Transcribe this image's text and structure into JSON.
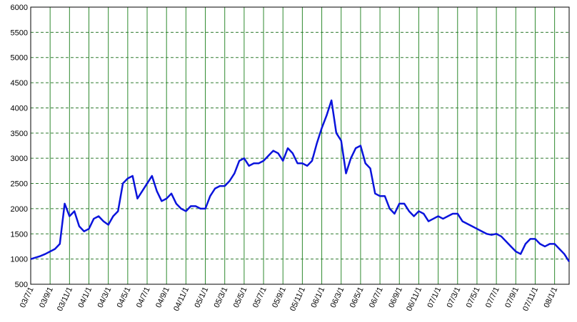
{
  "chart_data": {
    "type": "line",
    "categories": [
      "03/7/1",
      null,
      null,
      null,
      "03/9/1",
      null,
      null,
      null,
      "03/11/1",
      null,
      null,
      null,
      "04/1/1",
      null,
      null,
      null,
      "04/3/1",
      null,
      null,
      null,
      "04/5/1",
      null,
      null,
      null,
      "04/7/1",
      null,
      null,
      null,
      "04/9/1",
      null,
      null,
      null,
      "04/11/1",
      null,
      null,
      null,
      "05/1/1",
      null,
      null,
      null,
      "05/3/1",
      null,
      null,
      null,
      "05/5/1",
      null,
      null,
      null,
      "05/7/1",
      null,
      null,
      null,
      "05/9/1",
      null,
      null,
      null,
      "05/11/1",
      null,
      null,
      null,
      "06/1/1",
      null,
      null,
      null,
      "06/3/1",
      null,
      null,
      null,
      "06/5/1",
      null,
      null,
      null,
      "06/7/1",
      null,
      null,
      null,
      "06/9/1",
      null,
      null,
      null,
      "06/11/1",
      null,
      null,
      null,
      "07/1/1",
      null,
      null,
      null,
      "07/3/1",
      null,
      null,
      null,
      "07/5/1",
      null,
      null,
      null,
      "07/7/1",
      null,
      null,
      null,
      "07/9/1",
      null,
      null,
      null,
      "07/11/1",
      null,
      null,
      null,
      "08/1/1",
      null,
      null,
      null
    ],
    "values": [
      1000,
      1030,
      1060,
      1100,
      1150,
      1200,
      1300,
      2100,
      1850,
      1950,
      1650,
      1550,
      1600,
      1800,
      1850,
      1750,
      1680,
      1850,
      1950,
      2500,
      2600,
      2650,
      2200,
      2350,
      2500,
      2650,
      2350,
      2150,
      2200,
      2300,
      2100,
      2000,
      1950,
      2050,
      2050,
      2000,
      2000,
      2250,
      2400,
      2450,
      2450,
      2550,
      2700,
      2950,
      3000,
      2850,
      2900,
      2900,
      2950,
      3050,
      3150,
      3100,
      2950,
      3200,
      3100,
      2900,
      2900,
      2850,
      2950,
      3300,
      3600,
      3850,
      4150,
      3500,
      3350,
      2700,
      3000,
      3200,
      3250,
      2900,
      2800,
      2300,
      2250,
      2250,
      2000,
      1900,
      2100,
      2100,
      1950,
      1850,
      1950,
      1900,
      1750,
      1800,
      1850,
      1800,
      1850,
      1900,
      1900,
      1750,
      1700,
      1650,
      1600,
      1550,
      1500,
      1480,
      1500,
      1450,
      1350,
      1250,
      1150,
      1100,
      1300,
      1400,
      1400,
      1300,
      1250,
      1300,
      1300,
      1200,
      1100,
      950
    ],
    "color": "#0a14dc",
    "ylim": [
      500,
      6000
    ],
    "yticks": [
      500,
      1000,
      1500,
      2000,
      2500,
      3000,
      3500,
      4000,
      4500,
      5000,
      5500,
      6000
    ],
    "grid": true
  }
}
